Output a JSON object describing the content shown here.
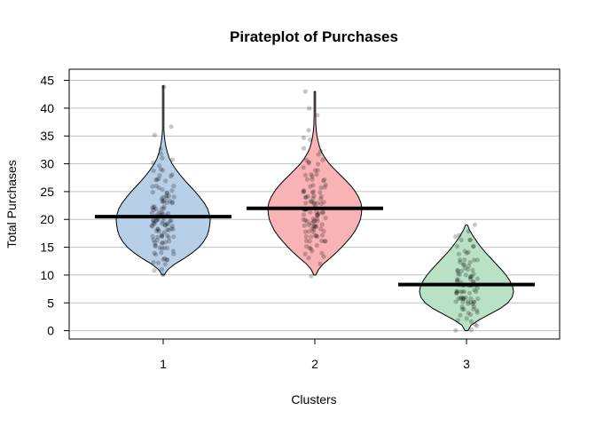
{
  "chart_data": {
    "type": "pirateplot",
    "title": "Pirateplot of Purchases",
    "xlabel": "Clusters",
    "ylabel": "Total Purchases",
    "ylim": [
      -1.5,
      47
    ],
    "yticks": [
      0,
      5,
      10,
      15,
      20,
      25,
      30,
      35,
      40,
      45
    ],
    "grid": true,
    "categories": [
      "1",
      "2",
      "3"
    ],
    "means": [
      20.5,
      22,
      8.3
    ],
    "ranges": [
      [
        10,
        44
      ],
      [
        10,
        43
      ],
      [
        0,
        19
      ]
    ],
    "colors": {
      "bean_fills": [
        "#b8cfe8",
        "#f9b3b6",
        "#b9e1c5"
      ],
      "grid": "#c0c0c0",
      "mean_line": "#000000"
    },
    "series": [
      {
        "violin": [
          [
            10,
            0.02
          ],
          [
            11,
            0.1
          ],
          [
            12,
            0.25
          ],
          [
            13,
            0.45
          ],
          [
            14,
            0.62
          ],
          [
            15,
            0.76
          ],
          [
            16,
            0.86
          ],
          [
            17,
            0.93
          ],
          [
            18,
            0.97
          ],
          [
            19,
            0.99
          ],
          [
            20,
            1.0
          ],
          [
            21,
            0.98
          ],
          [
            22,
            0.94
          ],
          [
            23,
            0.87
          ],
          [
            24,
            0.78
          ],
          [
            25,
            0.68
          ],
          [
            26,
            0.57
          ],
          [
            27,
            0.46
          ],
          [
            28,
            0.36
          ],
          [
            29,
            0.27
          ],
          [
            30,
            0.19
          ],
          [
            31,
            0.13
          ],
          [
            32,
            0.09
          ],
          [
            33,
            0.06
          ],
          [
            34,
            0.04
          ],
          [
            35,
            0.025
          ],
          [
            36,
            0.015
          ],
          [
            38,
            0.008
          ],
          [
            40,
            0.006
          ],
          [
            42,
            0.005
          ],
          [
            44,
            0.004
          ]
        ],
        "points": [
          10,
          11,
          11,
          12,
          12,
          12,
          13,
          13,
          13,
          13,
          14,
          14,
          14,
          14,
          14,
          15,
          15,
          15,
          15,
          15,
          15,
          16,
          16,
          16,
          16,
          16,
          16,
          16,
          17,
          17,
          17,
          17,
          17,
          17,
          17,
          17,
          18,
          18,
          18,
          18,
          18,
          18,
          18,
          18,
          18,
          19,
          19,
          19,
          19,
          19,
          19,
          19,
          19,
          19,
          19,
          20,
          20,
          20,
          20,
          20,
          20,
          20,
          20,
          20,
          20,
          21,
          21,
          21,
          21,
          21,
          21,
          21,
          21,
          21,
          22,
          22,
          22,
          22,
          22,
          22,
          22,
          22,
          23,
          23,
          23,
          23,
          23,
          23,
          23,
          24,
          24,
          24,
          24,
          24,
          24,
          25,
          25,
          25,
          25,
          25,
          26,
          26,
          26,
          26,
          27,
          27,
          27,
          27,
          28,
          28,
          28,
          29,
          29,
          29,
          30,
          30,
          31,
          31,
          32,
          33,
          35,
          37,
          44
        ]
      },
      {
        "violin": [
          [
            10,
            0.02
          ],
          [
            11,
            0.08
          ],
          [
            12,
            0.18
          ],
          [
            13,
            0.32
          ],
          [
            14,
            0.45
          ],
          [
            15,
            0.57
          ],
          [
            16,
            0.68
          ],
          [
            17,
            0.78
          ],
          [
            18,
            0.86
          ],
          [
            19,
            0.92
          ],
          [
            20,
            0.97
          ],
          [
            21,
            0.99
          ],
          [
            22,
            1.0
          ],
          [
            23,
            0.98
          ],
          [
            24,
            0.93
          ],
          [
            25,
            0.86
          ],
          [
            26,
            0.77
          ],
          [
            27,
            0.66
          ],
          [
            28,
            0.54
          ],
          [
            29,
            0.42
          ],
          [
            30,
            0.31
          ],
          [
            31,
            0.22
          ],
          [
            32,
            0.15
          ],
          [
            33,
            0.1
          ],
          [
            34,
            0.07
          ],
          [
            35,
            0.045
          ],
          [
            36,
            0.03
          ],
          [
            37,
            0.02
          ],
          [
            39,
            0.012
          ],
          [
            41,
            0.01
          ],
          [
            43,
            0.008
          ]
        ],
        "points": [
          10,
          12,
          13,
          13,
          14,
          14,
          14,
          15,
          15,
          15,
          15,
          16,
          16,
          16,
          16,
          16,
          17,
          17,
          17,
          17,
          17,
          17,
          18,
          18,
          18,
          18,
          18,
          18,
          18,
          19,
          19,
          19,
          19,
          19,
          19,
          19,
          19,
          20,
          20,
          20,
          20,
          20,
          20,
          20,
          20,
          20,
          21,
          21,
          21,
          21,
          21,
          21,
          21,
          21,
          21,
          22,
          22,
          22,
          22,
          22,
          22,
          22,
          22,
          22,
          23,
          23,
          23,
          23,
          23,
          23,
          23,
          23,
          24,
          24,
          24,
          24,
          24,
          24,
          24,
          25,
          25,
          25,
          25,
          25,
          25,
          26,
          26,
          26,
          26,
          26,
          27,
          27,
          27,
          27,
          28,
          28,
          28,
          28,
          29,
          29,
          29,
          30,
          30,
          30,
          31,
          31,
          32,
          32,
          33,
          34,
          35,
          36,
          39,
          40,
          43
        ]
      },
      {
        "violin": [
          [
            0,
            0.03
          ],
          [
            1,
            0.1
          ],
          [
            2,
            0.28
          ],
          [
            3,
            0.5
          ],
          [
            4,
            0.72
          ],
          [
            5,
            0.88
          ],
          [
            6,
            0.97
          ],
          [
            7,
            1.0
          ],
          [
            8,
            0.98
          ],
          [
            9,
            0.92
          ],
          [
            10,
            0.84
          ],
          [
            11,
            0.74
          ],
          [
            12,
            0.63
          ],
          [
            13,
            0.52
          ],
          [
            14,
            0.41
          ],
          [
            15,
            0.31
          ],
          [
            16,
            0.22
          ],
          [
            17,
            0.14
          ],
          [
            18,
            0.07
          ],
          [
            19,
            0.02
          ]
        ],
        "points": [
          0,
          0,
          1,
          1,
          2,
          2,
          2,
          3,
          3,
          3,
          3,
          4,
          4,
          4,
          4,
          4,
          4,
          5,
          5,
          5,
          5,
          5,
          5,
          5,
          5,
          6,
          6,
          6,
          6,
          6,
          6,
          6,
          6,
          6,
          7,
          7,
          7,
          7,
          7,
          7,
          7,
          7,
          7,
          7,
          8,
          8,
          8,
          8,
          8,
          8,
          8,
          8,
          8,
          9,
          9,
          9,
          9,
          9,
          9,
          9,
          9,
          10,
          10,
          10,
          10,
          10,
          10,
          10,
          11,
          11,
          11,
          11,
          11,
          11,
          12,
          12,
          12,
          12,
          12,
          13,
          13,
          13,
          13,
          14,
          14,
          14,
          14,
          15,
          15,
          15,
          16,
          16,
          16,
          17,
          17,
          18,
          19
        ]
      }
    ]
  }
}
